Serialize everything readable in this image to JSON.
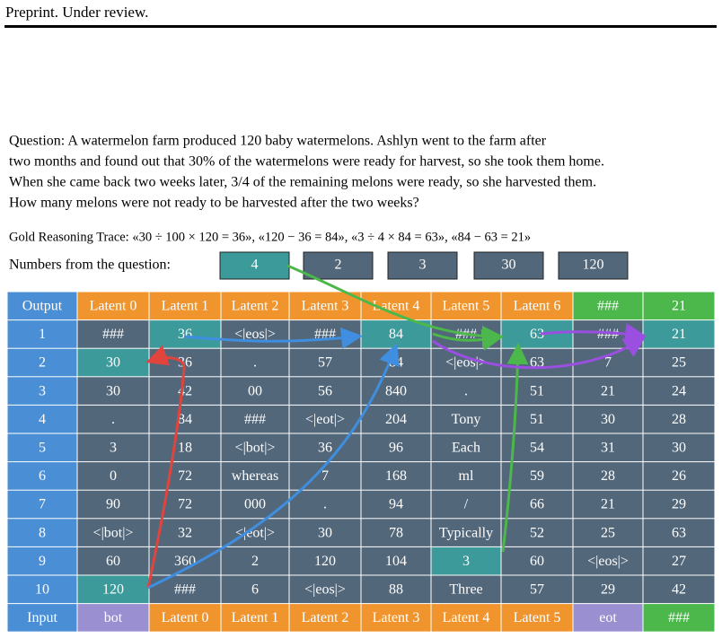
{
  "header": "Preprint. Under review.",
  "question": [
    "Question: A watermelon farm produced 120 baby watermelons. Ashlyn went to the farm after",
    "two months and found out that 30% of the watermelons were ready for harvest, so she took them home.",
    "When she came back two weeks later, 3/4 of the remaining melons were ready, so she harvested them.",
    "How many melons were not ready to be harvested after the two weeks?"
  ],
  "gold_trace": "Gold Reasoning Trace: «30 ÷ 100 × 120 = 36», «120 − 36 = 84», «3 ÷ 4 × 84 = 63», «84 − 63 = 21»",
  "numbers_label": "Numbers from the question:",
  "numbers": [
    "4",
    "2",
    "3",
    "30",
    "120"
  ],
  "table": {
    "header": [
      "Output",
      "Latent 0",
      "Latent 1",
      "Latent 2",
      "Latent 3",
      "Latent 4",
      "Latent 5",
      "Latent 6",
      "###",
      "21"
    ],
    "rows": [
      [
        "1",
        "###",
        "36",
        "<|eos|>",
        "###",
        "84",
        "###",
        "63",
        "###",
        "21"
      ],
      [
        "2",
        "30",
        "36",
        ".",
        "57",
        "84",
        "<|eos|>",
        "63",
        "7",
        "25"
      ],
      [
        "3",
        "30",
        "42",
        "00",
        "56",
        "840",
        ".",
        "51",
        "21",
        "24"
      ],
      [
        "4",
        ".",
        "84",
        "###",
        "<|eot|>",
        "204",
        "Tony",
        "51",
        "30",
        "28"
      ],
      [
        "5",
        "3",
        "18",
        "<|bot|>",
        "36",
        "96",
        "Each",
        "54",
        "31",
        "30"
      ],
      [
        "6",
        "0",
        "72",
        "whereas",
        "7",
        "168",
        "ml",
        "59",
        "28",
        "26"
      ],
      [
        "7",
        "90",
        "72",
        "000",
        ".",
        "94",
        "/",
        "66",
        "21",
        "29"
      ],
      [
        "8",
        "<|bot|>",
        "32",
        "<|eot|>",
        "30",
        "78",
        "Typically",
        "52",
        "25",
        "63"
      ],
      [
        "9",
        "60",
        "360",
        "2",
        "120",
        "104",
        "3",
        "60",
        "<|eos|>",
        "27"
      ],
      [
        "10",
        "120",
        "###",
        "6",
        "<|eos|>",
        "88",
        "Three",
        "57",
        "29",
        "42"
      ]
    ],
    "input": [
      "Input",
      "bot",
      "Latent 0",
      "Latent 1",
      "Latent 2",
      "Latent 3",
      "Latent 4",
      "Latent 5",
      "eot",
      "###"
    ]
  }
}
